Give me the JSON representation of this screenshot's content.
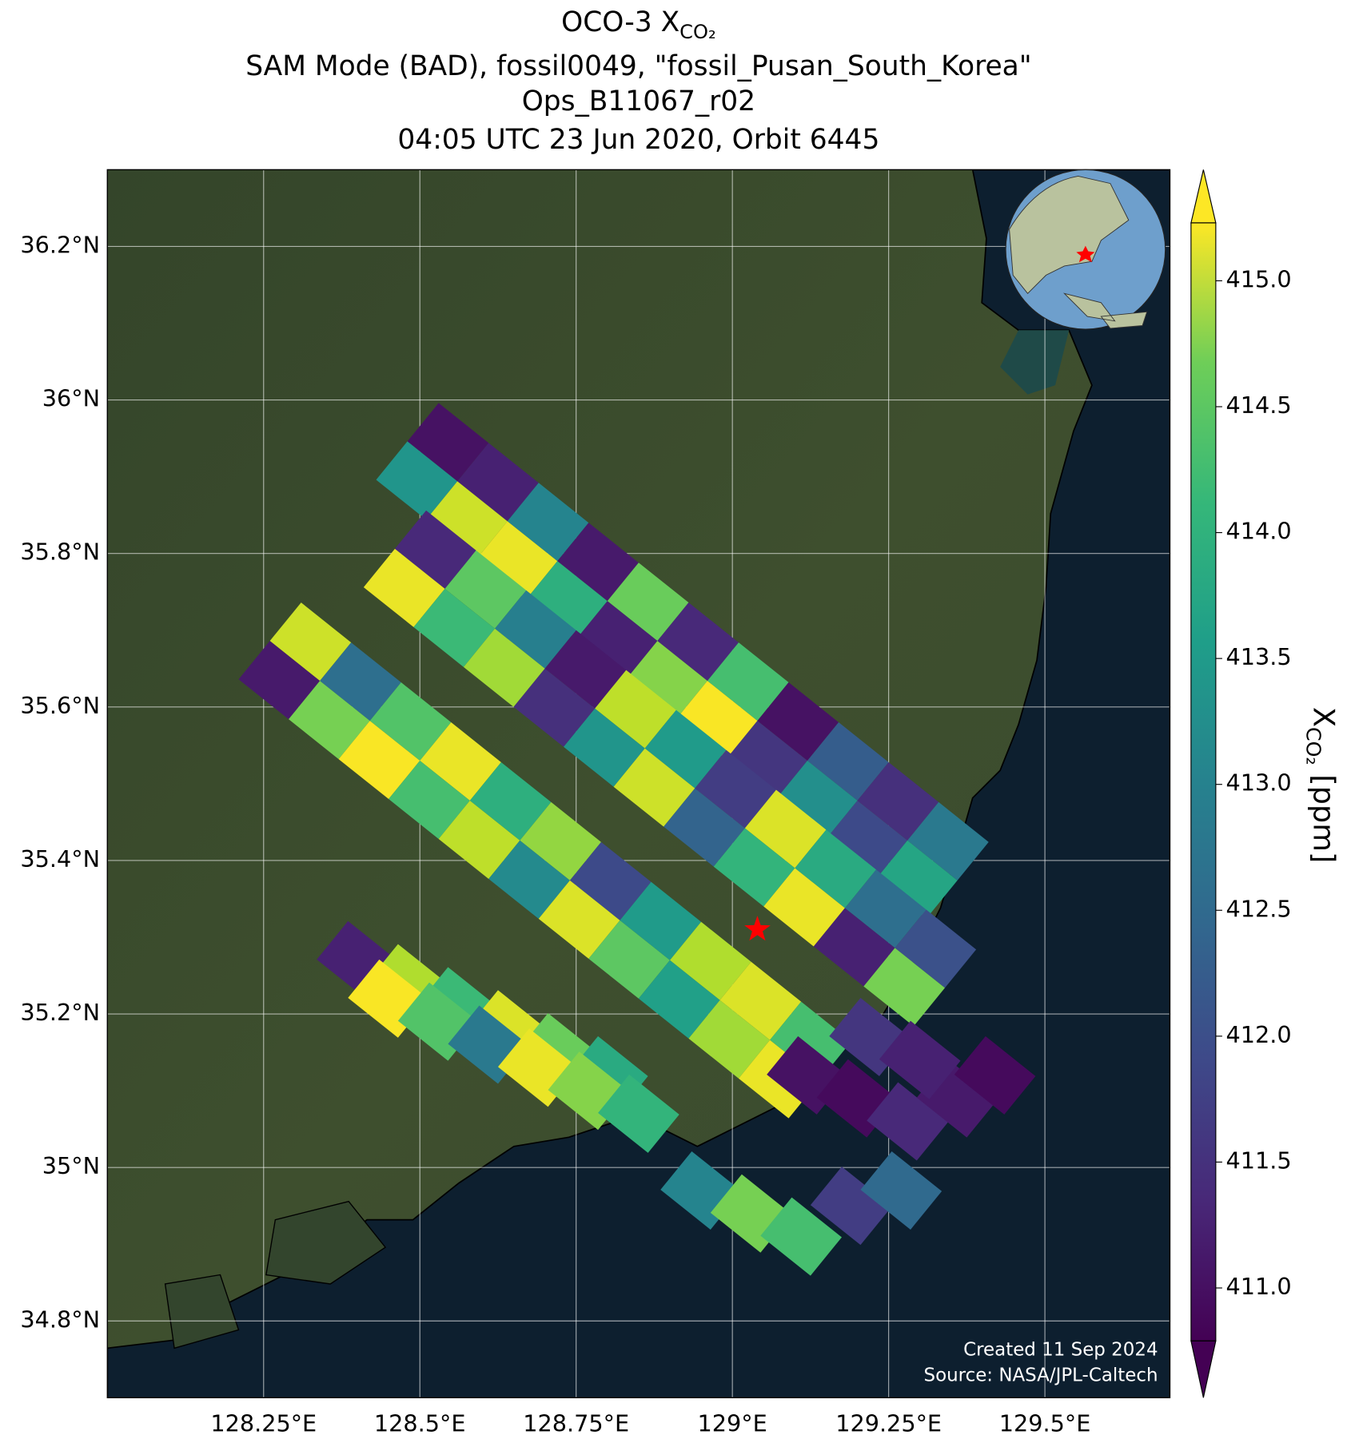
{
  "chart_data": {
    "type": "footprint-map",
    "title": {
      "prefix": "OCO-3 X",
      "subscript": "CO₂"
    },
    "subtitle": [
      "SAM Mode (BAD), fossil0049, \"fossil_Pusan_South_Korea\"",
      "Ops_B11067_r02",
      "04:05 UTC 23 Jun 2020, Orbit 6445"
    ],
    "xlim": [
      128.0,
      129.7
    ],
    "ylim": [
      34.7,
      36.3
    ],
    "xticks": [
      {
        "value": 128.25,
        "label": "128.25°E"
      },
      {
        "value": 128.5,
        "label": "128.5°E"
      },
      {
        "value": 128.75,
        "label": "128.75°E"
      },
      {
        "value": 129.0,
        "label": "129°E"
      },
      {
        "value": 129.25,
        "label": "129.25°E"
      },
      {
        "value": 129.5,
        "label": "129.5°E"
      }
    ],
    "yticks": [
      {
        "value": 34.8,
        "label": "34.8°N"
      },
      {
        "value": 35.0,
        "label": "35°N"
      },
      {
        "value": 35.2,
        "label": "35.2°N"
      },
      {
        "value": 35.4,
        "label": "35.4°N"
      },
      {
        "value": 35.6,
        "label": "35.6°N"
      },
      {
        "value": 35.8,
        "label": "35.8°N"
      },
      {
        "value": 36.0,
        "label": "36°N"
      },
      {
        "value": 36.2,
        "label": "36.2°N"
      }
    ],
    "grid": true,
    "x": [
      128.545,
      128.625,
      128.705,
      128.785,
      128.865,
      128.945,
      129.025,
      129.105,
      129.185,
      129.265,
      129.345,
      128.495,
      128.575,
      128.655,
      128.735,
      128.815,
      128.895,
      128.975,
      129.055,
      129.135,
      129.215,
      129.295,
      128.525,
      128.605,
      128.685,
      128.765,
      128.845,
      128.925,
      129.005,
      129.085,
      129.165,
      129.245,
      129.325,
      128.475,
      128.555,
      128.635,
      128.715,
      128.795,
      128.875,
      128.955,
      129.035,
      129.115,
      129.195,
      129.275,
      128.325,
      128.405,
      128.485,
      128.565,
      128.645,
      128.725,
      128.805,
      128.885,
      128.965,
      129.045,
      129.125,
      128.275,
      128.355,
      128.435,
      128.515,
      128.595,
      128.675,
      128.755,
      128.835,
      128.915,
      128.995,
      129.075,
      128.4,
      128.48,
      128.56,
      128.64,
      128.72,
      128.8,
      128.45,
      128.53,
      128.61,
      128.69,
      128.77,
      128.85,
      129.12,
      129.2,
      129.28,
      129.36,
      129.42,
      129.22,
      129.3,
      128.95,
      129.03,
      129.11,
      129.19,
      129.27
    ],
    "y": [
      35.945,
      35.893,
      35.841,
      35.789,
      35.737,
      35.685,
      35.633,
      35.581,
      35.529,
      35.477,
      35.425,
      35.895,
      35.843,
      35.791,
      35.739,
      35.687,
      35.635,
      35.583,
      35.531,
      35.479,
      35.427,
      35.375,
      35.805,
      35.753,
      35.701,
      35.649,
      35.597,
      35.545,
      35.493,
      35.441,
      35.389,
      35.337,
      35.285,
      35.755,
      35.703,
      35.651,
      35.599,
      35.547,
      35.495,
      35.443,
      35.391,
      35.339,
      35.287,
      35.235,
      35.685,
      35.633,
      35.581,
      35.529,
      35.477,
      35.425,
      35.373,
      35.321,
      35.269,
      35.217,
      35.165,
      35.635,
      35.583,
      35.531,
      35.479,
      35.427,
      35.375,
      35.323,
      35.271,
      35.219,
      35.167,
      35.115,
      35.27,
      35.24,
      35.21,
      35.18,
      35.15,
      35.12,
      35.22,
      35.19,
      35.16,
      35.13,
      35.1,
      35.07,
      35.12,
      35.09,
      35.06,
      35.09,
      35.12,
      35.17,
      35.14,
      34.97,
      34.94,
      34.91,
      34.95,
      34.97
    ],
    "values": [
      411.0,
      411.2,
      412.8,
      411.1,
      414.2,
      411.3,
      413.9,
      411.0,
      412.1,
      411.4,
      412.6,
      413.1,
      414.9,
      415.1,
      413.6,
      411.2,
      414.4,
      415.2,
      411.5,
      413.0,
      411.8,
      413.4,
      411.3,
      414.1,
      412.7,
      411.1,
      414.8,
      413.2,
      411.6,
      415.0,
      413.5,
      412.4,
      411.9,
      415.1,
      413.8,
      414.6,
      411.4,
      413.1,
      414.9,
      412.2,
      413.7,
      415.1,
      411.2,
      414.3,
      414.9,
      412.4,
      414.0,
      415.1,
      413.6,
      414.5,
      411.8,
      413.2,
      414.7,
      415.0,
      413.9,
      411.1,
      414.3,
      415.2,
      413.9,
      414.8,
      412.9,
      415.0,
      414.1,
      413.3,
      414.6,
      415.1,
      411.2,
      414.7,
      413.8,
      415.0,
      414.2,
      413.5,
      415.2,
      414.0,
      412.6,
      415.1,
      414.4,
      413.7,
      411.0,
      410.9,
      411.3,
      411.1,
      410.9,
      411.5,
      411.2,
      412.8,
      414.3,
      413.9,
      411.6,
      412.3
    ],
    "source_location": {
      "lon": 129.04,
      "lat": 35.31,
      "color": "#ff0000"
    },
    "colorbar": {
      "colormap": "viridis",
      "extend": "both",
      "clim": [
        410.79,
        415.23
      ],
      "ticks": [
        {
          "value": 411.0,
          "label": "411.0"
        },
        {
          "value": 411.5,
          "label": "411.5"
        },
        {
          "value": 412.0,
          "label": "412.0"
        },
        {
          "value": 412.5,
          "label": "412.5"
        },
        {
          "value": 413.0,
          "label": "413.0"
        },
        {
          "value": 413.5,
          "label": "413.5"
        },
        {
          "value": 414.0,
          "label": "414.0"
        },
        {
          "value": 414.5,
          "label": "414.5"
        },
        {
          "value": 415.0,
          "label": "415.0"
        }
      ],
      "label": {
        "symbol": "X",
        "subscript": "CO₂",
        "units": " [ppm]"
      }
    },
    "credits": [
      "Created 11 Sep 2024",
      "Source: NASA/JPL-Caltech"
    ]
  }
}
